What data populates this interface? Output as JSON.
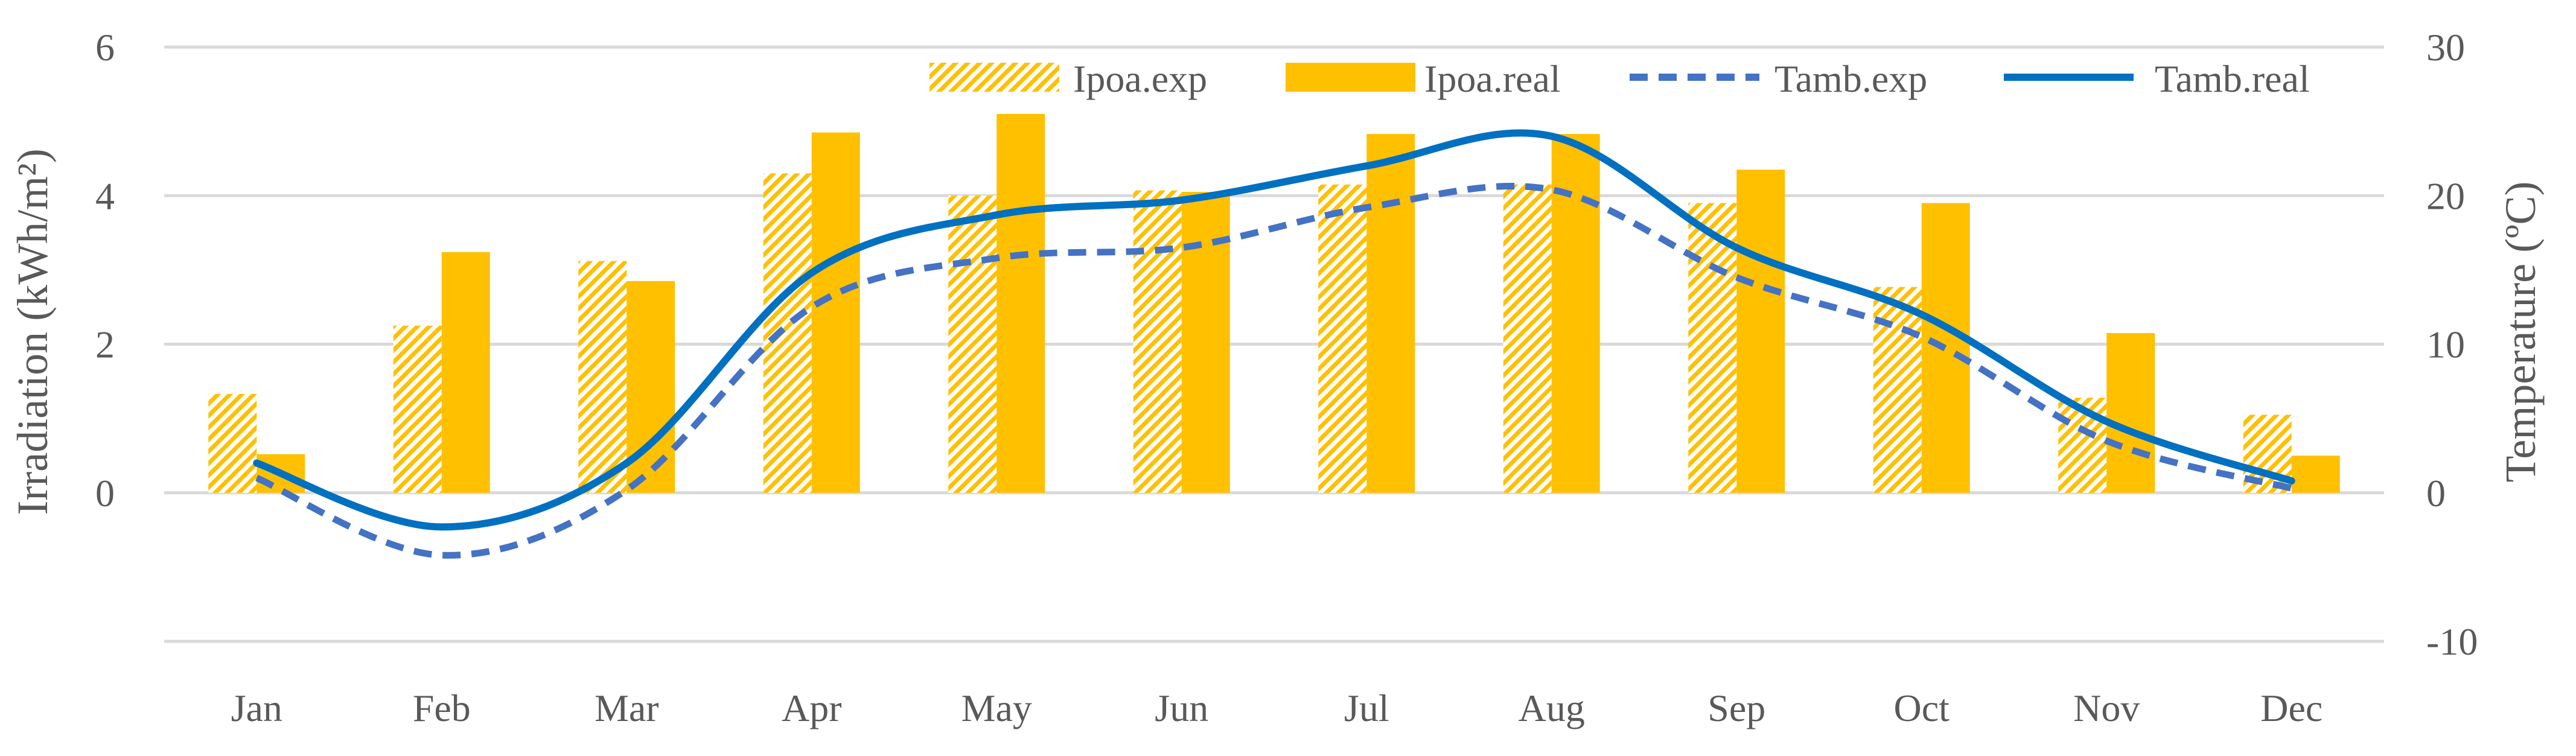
{
  "chart_data": {
    "type": "bar",
    "categories": [
      "Jan",
      "Feb",
      "Mar",
      "Apr",
      "May",
      "Jun",
      "Jul",
      "Aug",
      "Sep",
      "Oct",
      "Nov",
      "Dec"
    ],
    "series": [
      {
        "name": "Ipoa.exp",
        "kind": "bar",
        "axis": "left",
        "pattern": "hatched",
        "color": "#FFC000",
        "values": [
          1.33,
          2.25,
          3.12,
          4.3,
          4.0,
          4.07,
          4.15,
          4.15,
          3.9,
          2.77,
          1.28,
          1.05
        ]
      },
      {
        "name": "Ipoa.real",
        "kind": "bar",
        "axis": "left",
        "pattern": "solid",
        "color": "#FFC000",
        "values": [
          0.52,
          3.24,
          2.85,
          4.85,
          5.1,
          4.05,
          4.83,
          4.83,
          4.35,
          3.9,
          2.15,
          0.5
        ]
      },
      {
        "name": "Tamb.exp",
        "kind": "line",
        "axis": "right",
        "style": "dashed",
        "color": "#4472C4",
        "values": [
          1.0,
          -4.2,
          0.2,
          12.5,
          15.8,
          16.5,
          19.2,
          20.4,
          14.5,
          10.5,
          3.5,
          0.3
        ]
      },
      {
        "name": "Tamb.real",
        "kind": "line",
        "axis": "right",
        "style": "solid",
        "color": "#0070C0",
        "values": [
          2.0,
          -2.3,
          2.0,
          14.8,
          18.7,
          19.7,
          22.0,
          24.0,
          16.5,
          12.0,
          4.8,
          0.8
        ]
      }
    ],
    "y_left": {
      "label": "Irradiation (kWh/m²)",
      "ticks": [
        "0",
        "2",
        "4",
        "6"
      ],
      "tick_values": [
        0,
        2,
        4,
        6
      ],
      "range": [
        -2,
        6
      ]
    },
    "y_right": {
      "label": "Temperature (ºC)",
      "ticks": [
        "-10",
        "0",
        "10",
        "20",
        "30"
      ],
      "tick_values": [
        -10,
        0,
        10,
        20,
        30
      ],
      "range": [
        -10,
        30
      ]
    },
    "grid": true,
    "legend": {
      "position": "top-right",
      "items": [
        "Ipoa.exp",
        "Ipoa.real",
        "Tamb.exp",
        "Tamb.real"
      ]
    }
  }
}
